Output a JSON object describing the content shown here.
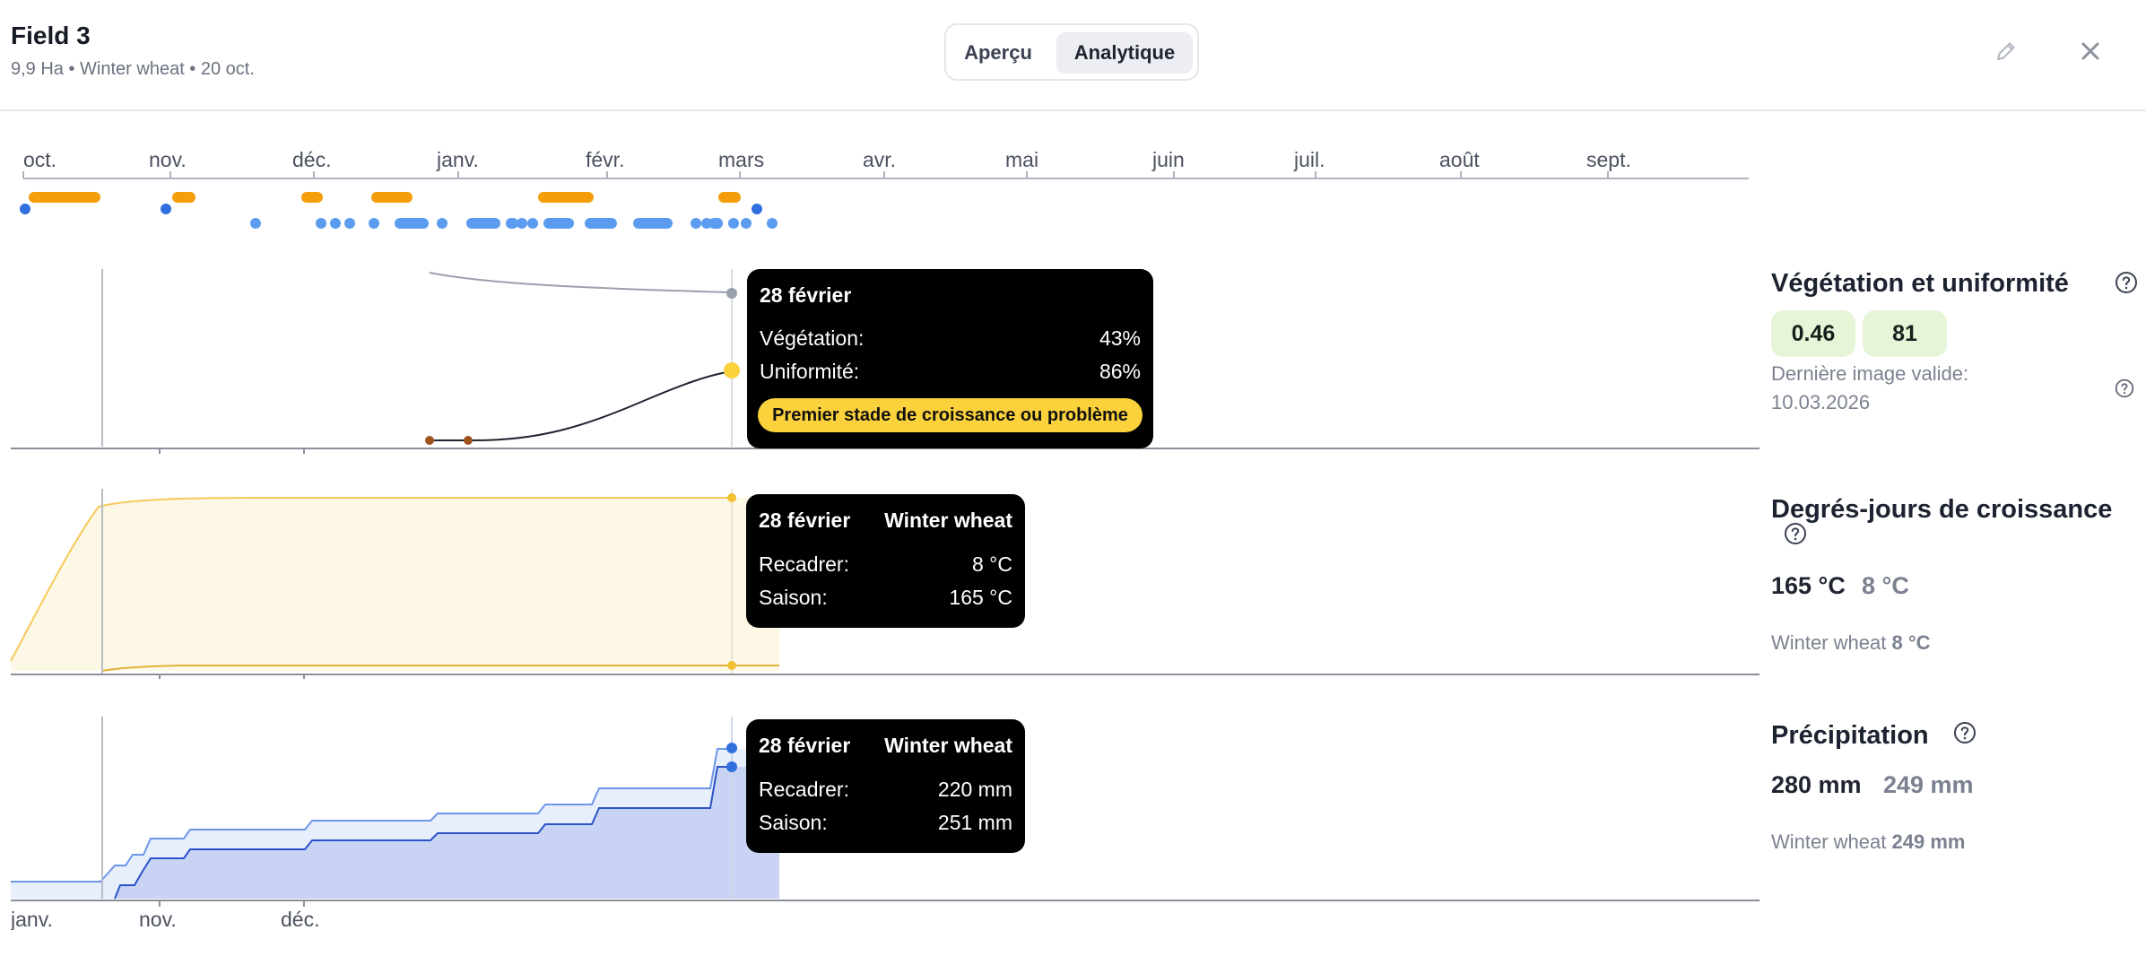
{
  "header": {
    "title": "Field 3",
    "subtitle": "9,9 Ha • Winter wheat • 20 oct.",
    "tabs": [
      {
        "label": "Aperçu",
        "active": false
      },
      {
        "label": "Analytique",
        "active": true
      }
    ],
    "icons": [
      "pencil-icon",
      "close-icon"
    ]
  },
  "timeline": {
    "months": [
      "oct.",
      "nov.",
      "déc.",
      "janv.",
      "févr.",
      "mars",
      "avr.",
      "mai",
      "juin",
      "juil.",
      "août",
      "sept."
    ],
    "colors": {
      "orange": "#f59e0b",
      "blue": "#5b9cf0",
      "dark_blue": "#2f6fde"
    }
  },
  "vegetation_chart": {
    "tooltip": {
      "date": "28 février",
      "rows": [
        {
          "label": "Végétation:",
          "value": "43%"
        },
        {
          "label": "Uniformité:",
          "value": "86%"
        }
      ],
      "badge": "Premier stade de croissance ou problème"
    },
    "colors": {
      "uniformity_line": "#9aa0ad",
      "vegetation_line": "#1f2430",
      "marker": "#fbd23b",
      "early_points": "#a0521d"
    }
  },
  "gdd_chart": {
    "tooltip": {
      "date": "28 février",
      "crop": "Winter wheat",
      "rows": [
        {
          "label": "Recadrer:",
          "value": "8 °C"
        },
        {
          "label": "Saison:",
          "value": "165 °C"
        }
      ]
    },
    "colors": {
      "fill": "#fdf8e6",
      "line": "#f6c95a",
      "lower_line": "#e3b13a"
    }
  },
  "precip_chart": {
    "tooltip": {
      "date": "28 février",
      "crop": "Winter wheat",
      "rows": [
        {
          "label": "Recadrer:",
          "value": "220 mm"
        },
        {
          "label": "Saison:",
          "value": "251 mm"
        }
      ]
    },
    "x_labels": [
      "janv.",
      "nov.",
      "déc."
    ],
    "colors": {
      "fill": "#c9d4f5",
      "upper_fill": "#e7eefc",
      "line": "#2a53c7",
      "upper_line": "#6e96e8"
    }
  },
  "panels": {
    "vegetation": {
      "title": "Végétation et uniformité",
      "values": [
        "0.46",
        "81"
      ],
      "last_image_label": "Dernière image valide:",
      "last_image_date": "10.03.2026"
    },
    "gdd": {
      "title": "Degrés-jours de croissance",
      "primary": "165 °C",
      "secondary": "8 °C",
      "crop_label": "Winter wheat",
      "crop_value": "8 °C"
    },
    "precipitation": {
      "title": "Précipitation",
      "primary": "280 mm",
      "secondary": "249 mm",
      "crop_label": "Winter wheat",
      "crop_value": "249 mm"
    }
  }
}
